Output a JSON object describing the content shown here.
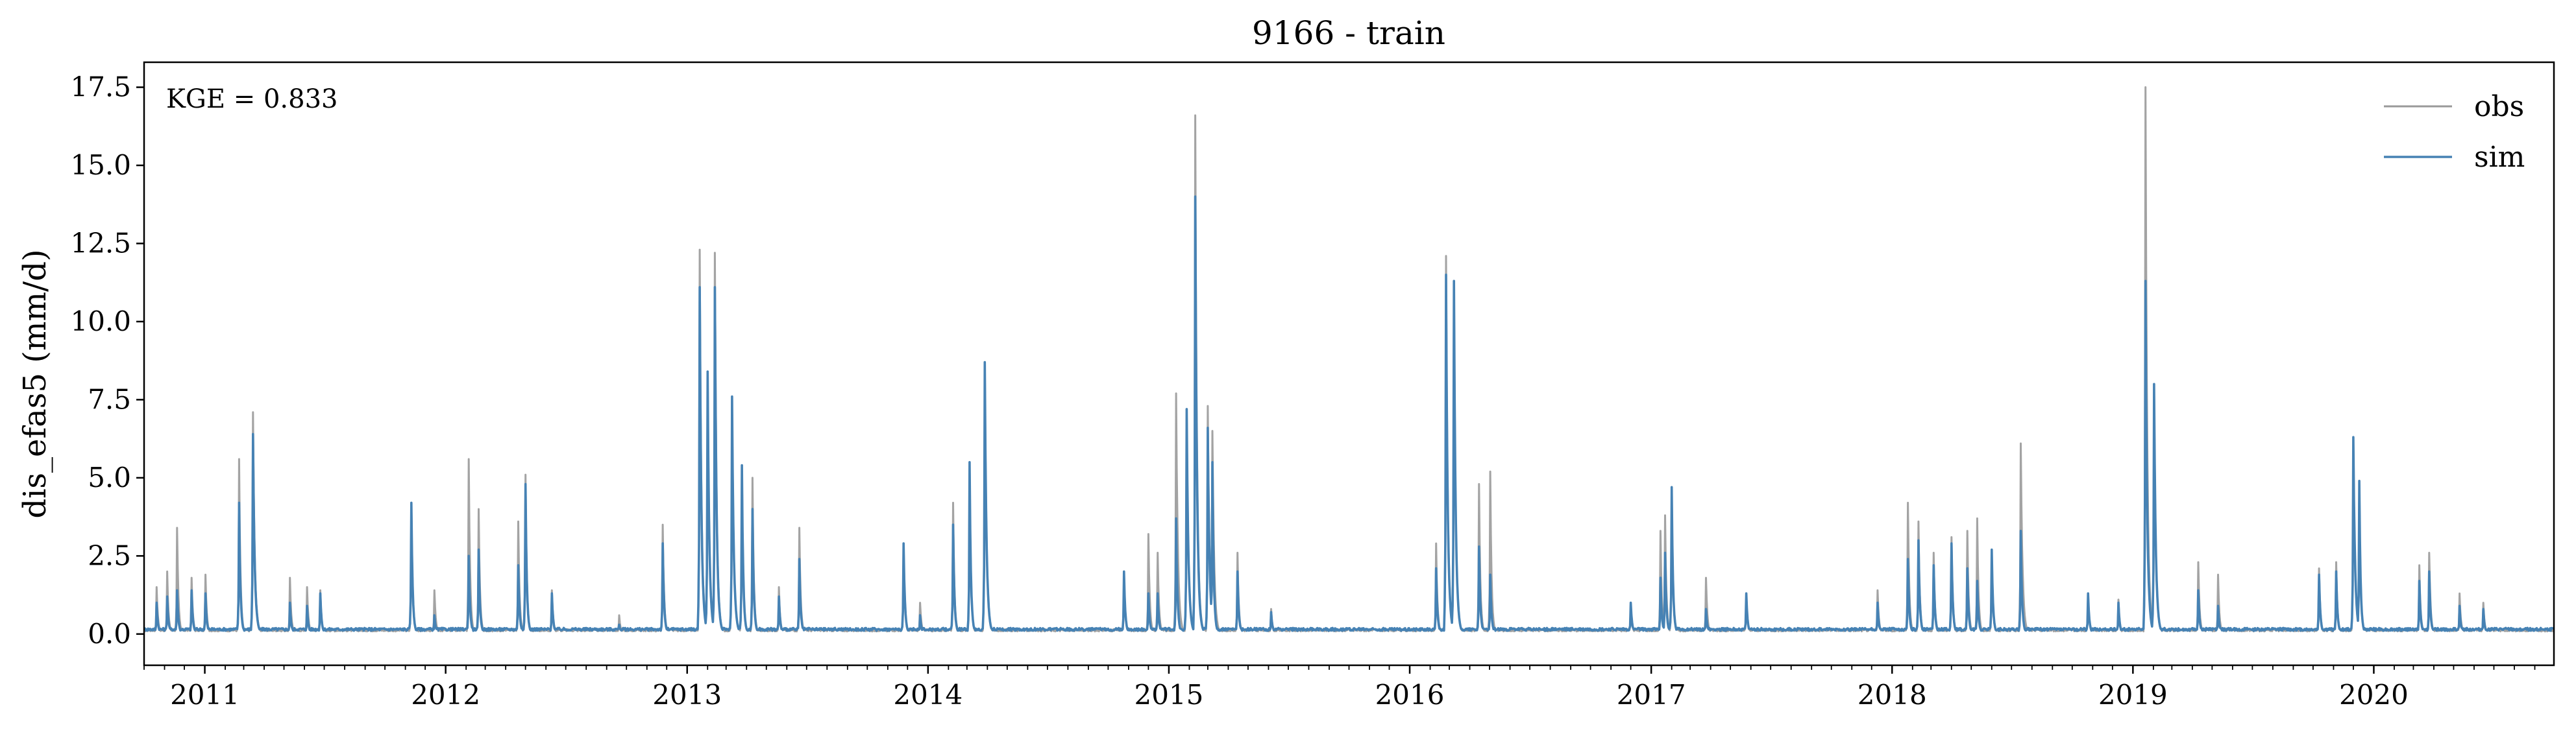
{
  "chart_data": {
    "type": "line",
    "title": "9166 - train",
    "xlabel": "",
    "ylabel": "dis_efas5 (mm/d)",
    "annotation": "KGE = 0.833",
    "x_range": [
      "2010-10-01",
      "2020-09-30"
    ],
    "ylim": [
      -1.0,
      18.3
    ],
    "yticks": [
      0.0,
      2.5,
      5.0,
      7.5,
      10.0,
      12.5,
      15.0,
      17.5
    ],
    "ytick_labels": [
      "0.0",
      "2.5",
      "5.0",
      "7.5",
      "10.0",
      "12.5",
      "15.0",
      "17.5"
    ],
    "xticks": [
      "2011-01-01",
      "2012-01-01",
      "2013-01-01",
      "2014-01-01",
      "2015-01-01",
      "2016-01-01",
      "2017-01-01",
      "2018-01-01",
      "2019-01-01",
      "2020-01-01"
    ],
    "xtick_labels": [
      "2011",
      "2012",
      "2013",
      "2014",
      "2015",
      "2016",
      "2017",
      "2018",
      "2019",
      "2020"
    ],
    "grid": false,
    "legend_position": "top-right",
    "series": [
      {
        "name": "obs",
        "color": "#999999",
        "baseline": 0.12,
        "peaks": [
          [
            "2010-10-20",
            1.5
          ],
          [
            "2010-11-05",
            2.0
          ],
          [
            "2010-11-20",
            3.4
          ],
          [
            "2010-12-12",
            1.8
          ],
          [
            "2011-01-02",
            1.9
          ],
          [
            "2011-02-22",
            5.6
          ],
          [
            "2011-03-15",
            7.1
          ],
          [
            "2011-05-10",
            1.8
          ],
          [
            "2011-06-05",
            1.5
          ],
          [
            "2011-06-25",
            1.4
          ],
          [
            "2011-11-10",
            4.2
          ],
          [
            "2011-12-15",
            1.4
          ],
          [
            "2012-02-05",
            5.6
          ],
          [
            "2012-02-20",
            4.0
          ],
          [
            "2012-04-20",
            3.6
          ],
          [
            "2012-05-01",
            5.1
          ],
          [
            "2012-06-10",
            1.4
          ],
          [
            "2012-09-20",
            0.6
          ],
          [
            "2012-11-25",
            3.5
          ],
          [
            "2013-01-20",
            12.3
          ],
          [
            "2013-02-01",
            8.4
          ],
          [
            "2013-02-12",
            12.2
          ],
          [
            "2013-03-10",
            7.5
          ],
          [
            "2013-03-25",
            5.4
          ],
          [
            "2013-04-10",
            5.0
          ],
          [
            "2013-05-20",
            1.5
          ],
          [
            "2013-06-20",
            3.4
          ],
          [
            "2013-11-25",
            2.9
          ],
          [
            "2013-12-20",
            1.0
          ],
          [
            "2014-02-08",
            4.2
          ],
          [
            "2014-03-05",
            5.3
          ],
          [
            "2014-03-28",
            8.7
          ],
          [
            "2014-10-25",
            1.9
          ],
          [
            "2014-12-01",
            3.2
          ],
          [
            "2014-12-15",
            2.6
          ],
          [
            "2015-01-12",
            7.7
          ],
          [
            "2015-01-28",
            7.2
          ],
          [
            "2015-02-10",
            16.6
          ],
          [
            "2015-03-01",
            7.3
          ],
          [
            "2015-03-08",
            6.5
          ],
          [
            "2015-04-15",
            2.6
          ],
          [
            "2015-06-05",
            0.8
          ],
          [
            "2016-02-10",
            2.9
          ],
          [
            "2016-02-25",
            12.1
          ],
          [
            "2016-03-08",
            11.3
          ],
          [
            "2016-04-15",
            4.8
          ],
          [
            "2016-05-02",
            5.2
          ],
          [
            "2016-12-01",
            1.0
          ],
          [
            "2017-01-15",
            3.3
          ],
          [
            "2017-01-22",
            3.8
          ],
          [
            "2017-02-01",
            4.7
          ],
          [
            "2017-03-25",
            1.8
          ],
          [
            "2017-05-25",
            1.2
          ],
          [
            "2017-12-10",
            1.4
          ],
          [
            "2018-01-25",
            4.2
          ],
          [
            "2018-02-10",
            3.6
          ],
          [
            "2018-03-05",
            2.6
          ],
          [
            "2018-04-01",
            3.1
          ],
          [
            "2018-04-25",
            3.3
          ],
          [
            "2018-05-10",
            3.7
          ],
          [
            "2018-06-01",
            2.5
          ],
          [
            "2018-07-15",
            6.1
          ],
          [
            "2018-10-25",
            1.3
          ],
          [
            "2018-12-10",
            1.1
          ],
          [
            "2019-01-20",
            17.5
          ],
          [
            "2019-02-02",
            7.9
          ],
          [
            "2019-04-10",
            2.3
          ],
          [
            "2019-05-10",
            1.9
          ],
          [
            "2019-10-10",
            2.1
          ],
          [
            "2019-11-05",
            2.3
          ],
          [
            "2019-12-01",
            6.2
          ],
          [
            "2019-12-10",
            4.8
          ],
          [
            "2020-03-10",
            2.2
          ],
          [
            "2020-03-25",
            2.6
          ],
          [
            "2020-05-10",
            1.3
          ],
          [
            "2020-06-15",
            1.0
          ]
        ]
      },
      {
        "name": "sim",
        "color": "#4682b4",
        "baseline": 0.15,
        "peaks": [
          [
            "2010-10-20",
            1.0
          ],
          [
            "2010-11-05",
            1.2
          ],
          [
            "2010-11-20",
            1.4
          ],
          [
            "2010-12-12",
            1.4
          ],
          [
            "2011-01-02",
            1.3
          ],
          [
            "2011-02-22",
            4.2
          ],
          [
            "2011-03-15",
            6.4
          ],
          [
            "2011-05-10",
            1.0
          ],
          [
            "2011-06-05",
            0.9
          ],
          [
            "2011-06-25",
            1.3
          ],
          [
            "2011-11-10",
            4.2
          ],
          [
            "2011-12-15",
            0.6
          ],
          [
            "2012-02-05",
            2.5
          ],
          [
            "2012-02-20",
            2.7
          ],
          [
            "2012-04-20",
            2.2
          ],
          [
            "2012-05-01",
            4.8
          ],
          [
            "2012-06-10",
            1.3
          ],
          [
            "2012-09-20",
            0.3
          ],
          [
            "2012-11-25",
            2.9
          ],
          [
            "2013-01-20",
            11.1
          ],
          [
            "2013-02-01",
            8.4
          ],
          [
            "2013-02-12",
            11.1
          ],
          [
            "2013-03-10",
            7.6
          ],
          [
            "2013-03-25",
            5.4
          ],
          [
            "2013-04-10",
            4.0
          ],
          [
            "2013-05-20",
            1.2
          ],
          [
            "2013-06-20",
            2.4
          ],
          [
            "2013-11-25",
            2.9
          ],
          [
            "2013-12-20",
            0.6
          ],
          [
            "2014-02-08",
            3.5
          ],
          [
            "2014-03-05",
            5.5
          ],
          [
            "2014-03-28",
            8.7
          ],
          [
            "2014-10-25",
            2.0
          ],
          [
            "2014-12-01",
            1.3
          ],
          [
            "2014-12-15",
            1.3
          ],
          [
            "2015-01-12",
            3.7
          ],
          [
            "2015-01-28",
            7.2
          ],
          [
            "2015-02-10",
            14.0
          ],
          [
            "2015-03-01",
            6.6
          ],
          [
            "2015-03-08",
            5.5
          ],
          [
            "2015-04-15",
            2.0
          ],
          [
            "2015-06-05",
            0.7
          ],
          [
            "2016-02-10",
            2.1
          ],
          [
            "2016-02-25",
            11.5
          ],
          [
            "2016-03-08",
            11.3
          ],
          [
            "2016-04-15",
            2.8
          ],
          [
            "2016-05-02",
            1.9
          ],
          [
            "2016-12-01",
            1.0
          ],
          [
            "2017-01-15",
            1.8
          ],
          [
            "2017-01-22",
            2.6
          ],
          [
            "2017-02-01",
            4.7
          ],
          [
            "2017-03-25",
            0.8
          ],
          [
            "2017-05-25",
            1.3
          ],
          [
            "2017-12-10",
            1.0
          ],
          [
            "2018-01-25",
            2.4
          ],
          [
            "2018-02-10",
            3.0
          ],
          [
            "2018-03-05",
            2.2
          ],
          [
            "2018-04-01",
            2.9
          ],
          [
            "2018-04-25",
            2.1
          ],
          [
            "2018-05-10",
            1.7
          ],
          [
            "2018-06-01",
            2.7
          ],
          [
            "2018-07-15",
            3.3
          ],
          [
            "2018-10-25",
            1.3
          ],
          [
            "2018-12-10",
            1.0
          ],
          [
            "2019-01-20",
            11.3
          ],
          [
            "2019-02-02",
            8.0
          ],
          [
            "2019-04-10",
            1.4
          ],
          [
            "2019-05-10",
            0.9
          ],
          [
            "2019-10-10",
            1.9
          ],
          [
            "2019-11-05",
            2.0
          ],
          [
            "2019-12-01",
            6.3
          ],
          [
            "2019-12-10",
            4.9
          ],
          [
            "2020-03-10",
            1.7
          ],
          [
            "2020-03-25",
            2.0
          ],
          [
            "2020-05-10",
            0.9
          ],
          [
            "2020-06-15",
            0.8
          ]
        ]
      }
    ]
  }
}
